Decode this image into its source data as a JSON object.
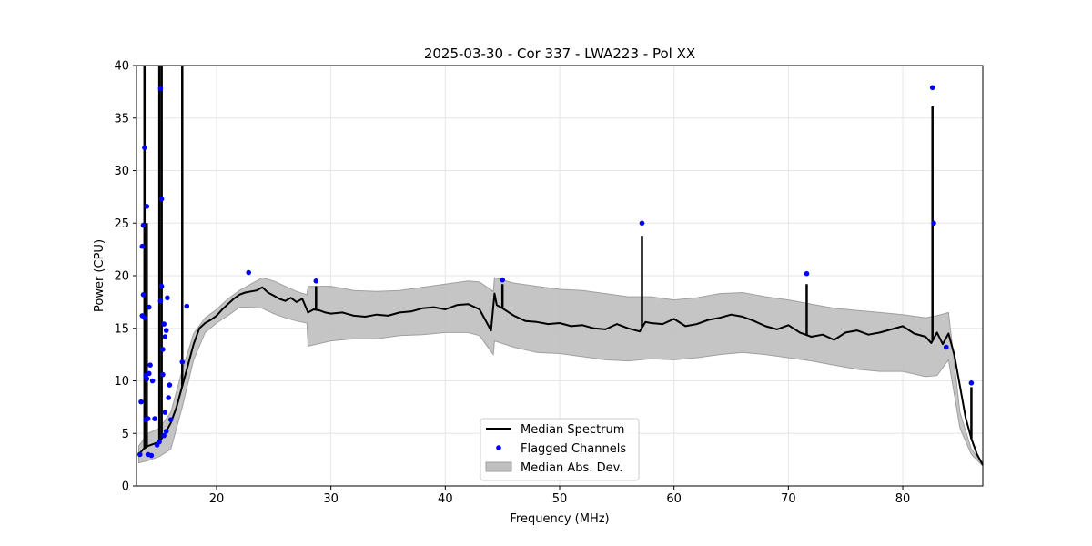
{
  "chart_data": {
    "type": "line",
    "title": "2025-03-30 - Cor 337 - LWA223 - Pol XX",
    "xlabel": "Frequency (MHz)",
    "ylabel": "Power (CPU)",
    "xlim": [
      13.0,
      87.0
    ],
    "ylim": [
      0,
      40
    ],
    "xticks": [
      20,
      30,
      40,
      50,
      60,
      70,
      80
    ],
    "yticks": [
      0,
      5,
      10,
      15,
      20,
      25,
      30,
      35,
      40
    ],
    "grid": true,
    "legend_position": "bottom-center",
    "legend": [
      {
        "label": "Median Spectrum",
        "kind": "line"
      },
      {
        "label": "Flagged Channels",
        "kind": "point"
      },
      {
        "label": "Median Abs. Dev.",
        "kind": "band"
      }
    ],
    "colors": {
      "median": "#000000",
      "flagged": "#0000ff",
      "band": "#bfbfbf",
      "band_edge": "#a0a0a0",
      "grid": "#e6e6e6"
    },
    "median_spectrum": {
      "x": [
        13.2,
        13.6,
        14.0,
        14.5,
        15.0,
        15.5,
        16.0,
        16.5,
        17.0,
        17.5,
        18.0,
        18.5,
        19.0,
        19.5,
        20.0,
        20.5,
        21.0,
        21.5,
        22.0,
        22.5,
        23.0,
        23.5,
        24.0,
        24.5,
        25.0,
        25.5,
        26.0,
        26.5,
        27.0,
        27.5,
        28.0,
        28.5,
        29.0,
        29.5,
        30.0,
        31.0,
        32.0,
        33.0,
        34.0,
        35.0,
        36.0,
        37.0,
        38.0,
        39.0,
        40.0,
        41.0,
        42.0,
        43.0,
        44.0,
        44.3,
        44.5,
        45.0,
        46.0,
        47.0,
        48.0,
        49.0,
        50.0,
        51.0,
        52.0,
        53.0,
        54.0,
        55.0,
        56.0,
        57.0,
        57.5,
        58.0,
        59.0,
        60.0,
        61.0,
        62.0,
        63.0,
        64.0,
        65.0,
        66.0,
        67.0,
        68.0,
        69.0,
        70.0,
        71.0,
        72.0,
        73.0,
        74.0,
        75.0,
        76.0,
        77.0,
        78.0,
        79.0,
        80.0,
        81.0,
        82.0,
        82.5,
        83.0,
        83.5,
        84.0,
        84.5,
        85.0,
        85.5,
        86.0,
        86.5,
        87.0
      ],
      "y": [
        3.0,
        3.5,
        3.8,
        4.0,
        4.2,
        5.0,
        6.0,
        7.5,
        9.5,
        11.5,
        13.5,
        15.0,
        15.5,
        15.8,
        16.2,
        16.8,
        17.3,
        17.8,
        18.2,
        18.4,
        18.5,
        18.6,
        18.9,
        18.4,
        18.1,
        17.8,
        17.6,
        17.9,
        17.5,
        17.8,
        16.5,
        16.8,
        16.7,
        16.5,
        16.4,
        16.5,
        16.2,
        16.1,
        16.3,
        16.2,
        16.5,
        16.6,
        16.9,
        17.0,
        16.8,
        17.2,
        17.3,
        16.8,
        14.8,
        18.3,
        17.2,
        16.9,
        16.2,
        15.7,
        15.6,
        15.4,
        15.5,
        15.2,
        15.3,
        15.0,
        14.9,
        15.4,
        15.0,
        14.7,
        15.6,
        15.5,
        15.4,
        15.9,
        15.2,
        15.4,
        15.8,
        16.0,
        16.3,
        16.1,
        15.7,
        15.2,
        14.9,
        15.3,
        14.6,
        14.2,
        14.4,
        13.9,
        14.6,
        14.8,
        14.4,
        14.6,
        14.9,
        15.2,
        14.5,
        14.2,
        13.6,
        14.6,
        13.5,
        14.5,
        12.5,
        9.5,
        6.5,
        4.5,
        3.0,
        2.0
      ],
      "spikes": [
        {
          "x": 13.7,
          "y": 40
        },
        {
          "x": 13.9,
          "y": 25
        },
        {
          "x": 15.0,
          "y": 40
        },
        {
          "x": 15.2,
          "y": 40
        },
        {
          "x": 17.0,
          "y": 40
        },
        {
          "x": 28.7,
          "y": 19.0
        },
        {
          "x": 45.0,
          "y": 19.2
        },
        {
          "x": 57.2,
          "y": 23.8
        },
        {
          "x": 71.6,
          "y": 19.2
        },
        {
          "x": 82.6,
          "y": 36.1
        },
        {
          "x": 86.0,
          "y": 9.4
        }
      ]
    },
    "mad_band": {
      "x": [
        13.2,
        14.0,
        15.0,
        16.0,
        17.0,
        18.0,
        19.0,
        20.0,
        21.0,
        22.0,
        23.0,
        24.0,
        25.0,
        26.0,
        27.0,
        27.9,
        28.0,
        30.0,
        32.0,
        34.0,
        36.0,
        38.0,
        40.0,
        42.0,
        43.0,
        44.2,
        44.3,
        46.0,
        48.0,
        50.0,
        52.0,
        54.0,
        56.0,
        58.0,
        60.0,
        62.0,
        64.0,
        66.0,
        68.0,
        70.0,
        72.0,
        74.0,
        76.0,
        78.0,
        80.0,
        82.0,
        83.0,
        84.0,
        85.0,
        86.0,
        87.0
      ],
      "upper": [
        3.8,
        5.0,
        5.5,
        7.0,
        11.0,
        14.5,
        16.0,
        16.8,
        17.8,
        18.6,
        19.2,
        19.8,
        19.5,
        19.0,
        18.5,
        18.2,
        19.0,
        19.0,
        18.6,
        18.5,
        18.6,
        18.9,
        19.2,
        19.5,
        19.4,
        18.5,
        19.8,
        19.3,
        19.0,
        18.7,
        18.6,
        18.3,
        18.0,
        18.0,
        17.7,
        17.9,
        18.3,
        18.4,
        18.0,
        17.7,
        17.3,
        16.9,
        16.7,
        16.5,
        16.3,
        16.0,
        16.2,
        16.5,
        7.0,
        3.5,
        2.1
      ],
      "lower": [
        2.2,
        2.4,
        2.8,
        3.5,
        7.5,
        12.0,
        14.6,
        15.5,
        16.2,
        17.0,
        17.0,
        16.9,
        16.4,
        16.0,
        15.7,
        15.5,
        13.3,
        13.8,
        14.0,
        14.0,
        14.3,
        14.4,
        14.6,
        14.6,
        14.3,
        12.5,
        13.8,
        13.2,
        12.7,
        12.6,
        12.3,
        12.0,
        11.9,
        12.1,
        12.0,
        12.2,
        12.5,
        12.7,
        12.5,
        12.2,
        11.9,
        11.5,
        11.1,
        10.9,
        10.9,
        10.4,
        10.5,
        12.0,
        5.5,
        3.0,
        1.9
      ]
    },
    "flagged_channels": {
      "x": [
        13.3,
        13.4,
        13.5,
        13.5,
        13.6,
        13.6,
        13.7,
        13.7,
        13.8,
        13.8,
        13.9,
        13.9,
        14.0,
        14.0,
        14.1,
        14.1,
        14.2,
        14.3,
        14.4,
        14.6,
        14.8,
        15.0,
        15.1,
        15.1,
        15.2,
        15.2,
        15.3,
        15.3,
        15.4,
        15.4,
        15.5,
        15.5,
        15.6,
        15.6,
        15.7,
        15.8,
        15.9,
        16.0,
        17.0,
        17.4,
        22.8,
        28.7,
        45.0,
        57.2,
        71.6,
        82.6,
        82.7,
        83.8,
        86.0
      ],
      "y": [
        3.0,
        8.0,
        16.2,
        22.8,
        18.2,
        24.8,
        16.0,
        32.2,
        6.3,
        10.5,
        10.2,
        26.6,
        3.0,
        6.4,
        10.7,
        17.0,
        11.5,
        2.9,
        10.0,
        6.4,
        3.9,
        4.2,
        17.6,
        37.8,
        19.0,
        27.3,
        13.0,
        10.6,
        4.8,
        15.4,
        7.0,
        14.2,
        5.2,
        14.8,
        17.9,
        8.4,
        9.6,
        6.3,
        11.8,
        17.1,
        20.3,
        19.5,
        19.6,
        25.0,
        20.2,
        37.9,
        25.0,
        13.2,
        9.8
      ]
    }
  }
}
